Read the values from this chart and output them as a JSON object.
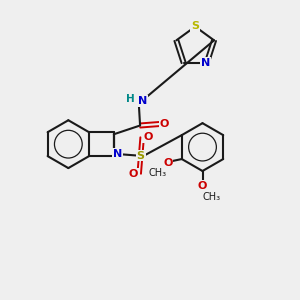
{
  "background_color": "#efefef",
  "bond_color": "#1a1a1a",
  "figsize": [
    3.0,
    3.0
  ],
  "dpi": 100,
  "colors": {
    "N": "#0000cc",
    "O": "#cc0000",
    "S_thiazole": "#b8b800",
    "S_sulfonyl": "#999900",
    "NH": "#008888",
    "C": "#1a1a1a",
    "methoxy": "#1a1a1a"
  },
  "xlim": [
    0,
    10
  ],
  "ylim": [
    0,
    10
  ]
}
